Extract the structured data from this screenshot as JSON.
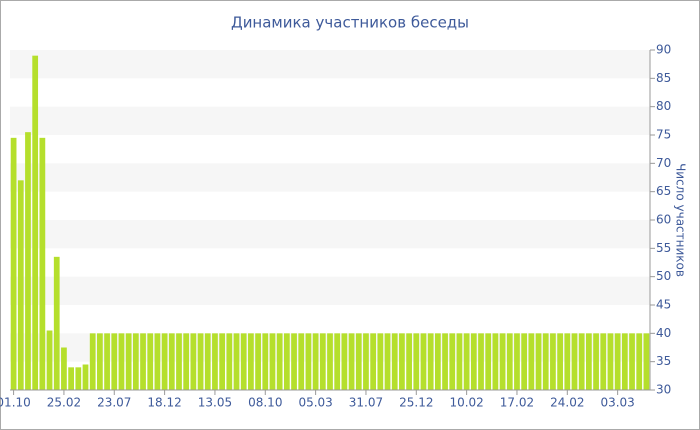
{
  "chart_data": {
    "type": "bar",
    "title": "Динамика участников беседы",
    "y_label": "Число участников",
    "categories": [
      "01.10",
      null,
      null,
      null,
      null,
      null,
      null,
      "25.02",
      null,
      null,
      null,
      null,
      null,
      null,
      "23.07",
      null,
      null,
      null,
      null,
      null,
      null,
      "18.12",
      null,
      null,
      null,
      null,
      null,
      null,
      "13.05",
      null,
      null,
      null,
      null,
      null,
      null,
      "08.10",
      null,
      null,
      null,
      null,
      null,
      null,
      "05.03",
      null,
      null,
      null,
      null,
      null,
      null,
      "31.07",
      null,
      null,
      null,
      null,
      null,
      null,
      "25.12",
      null,
      null,
      null,
      null,
      null,
      null,
      "10.02",
      null,
      null,
      null,
      null,
      null,
      null,
      "17.02",
      null,
      null,
      null,
      null,
      null,
      null,
      "24.02",
      null,
      null,
      null,
      null,
      null,
      null,
      "03.03",
      null,
      null,
      null,
      null
    ],
    "values": [
      74.5,
      67,
      75.5,
      89,
      74.5,
      40.5,
      53.5,
      37.5,
      34,
      34,
      34.5,
      40,
      40,
      40,
      40,
      40,
      40,
      40,
      40,
      40,
      40,
      40,
      40,
      40,
      40,
      40,
      40,
      40,
      40,
      40,
      40,
      40,
      40,
      40,
      40,
      40,
      40,
      40,
      40,
      40,
      40,
      40,
      40,
      40,
      40,
      40,
      40,
      40,
      40,
      40,
      40,
      40,
      40,
      40,
      40,
      40,
      40,
      40,
      40,
      40,
      40,
      40,
      40,
      40,
      40,
      40,
      40,
      40,
      40,
      40,
      40,
      40,
      40,
      40,
      40,
      40,
      40,
      40,
      40,
      40,
      40,
      40,
      40,
      40,
      40,
      40,
      40,
      40,
      40
    ],
    "color": "#b5df2c",
    "ylim": [
      30,
      90
    ],
    "yticks": [
      30,
      35,
      40,
      45,
      50,
      55,
      60,
      65,
      70,
      75,
      80,
      85,
      90
    ],
    "grid": true
  }
}
